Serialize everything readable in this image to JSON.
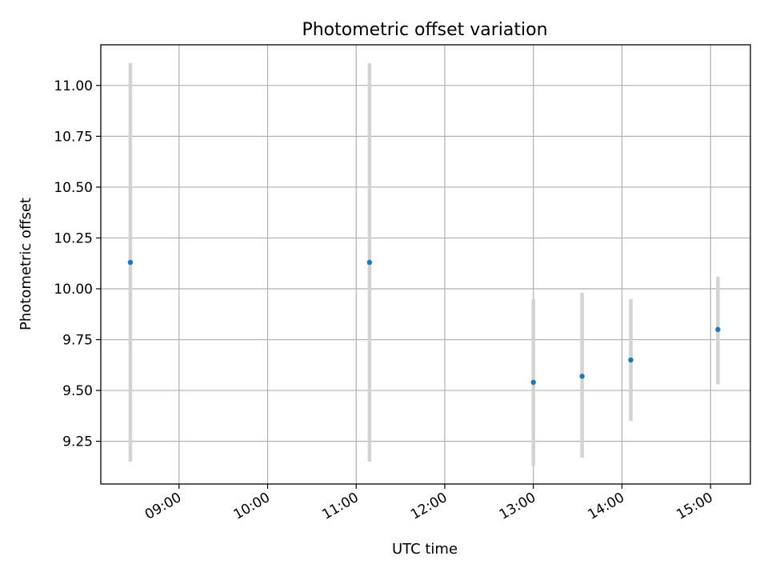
{
  "chart_data": {
    "type": "scatter",
    "title": "Photometric offset variation",
    "xlabel": "UTC time",
    "ylabel": "Photometric offset",
    "xlim": [
      "08:07",
      "15:27"
    ],
    "ylim": [
      9.04,
      11.2
    ],
    "grid": true,
    "x_ticks": [
      "09:00",
      "10:00",
      "11:00",
      "12:00",
      "13:00",
      "14:00",
      "15:00"
    ],
    "y_ticks": [
      "9.25",
      "9.50",
      "9.75",
      "10.00",
      "10.25",
      "10.50",
      "10.75",
      "11.00"
    ],
    "points": [
      {
        "x": "08:27",
        "y": 10.13,
        "y_low": 9.15,
        "y_high": 11.11
      },
      {
        "x": "11:09",
        "y": 10.13,
        "y_low": 9.15,
        "y_high": 11.11
      },
      {
        "x": "13:00",
        "y": 9.54,
        "y_low": 9.13,
        "y_high": 9.95
      },
      {
        "x": "13:33",
        "y": 9.57,
        "y_low": 9.17,
        "y_high": 9.98
      },
      {
        "x": "14:06",
        "y": 9.65,
        "y_low": 9.35,
        "y_high": 9.95
      },
      {
        "x": "15:05",
        "y": 9.8,
        "y_low": 9.53,
        "y_high": 10.06
      }
    ],
    "colors": {
      "point": "#1f77b4",
      "errorbar": "#d3d3d3",
      "grid": "#b0b0b0",
      "axes": "#000000"
    }
  }
}
